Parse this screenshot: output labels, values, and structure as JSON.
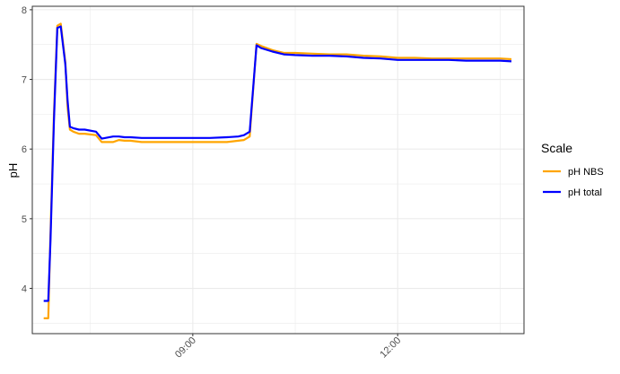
{
  "chart_data": {
    "type": "line",
    "title": "",
    "xlabel": "",
    "ylabel": "pH",
    "x_tick_labels": [
      "09:00",
      "12:00"
    ],
    "y_ticks": [
      4,
      5,
      6,
      7,
      8
    ],
    "ylim": [
      3.35,
      8.05
    ],
    "xlim": [
      "06:39",
      "13:51"
    ],
    "grid": true,
    "legend": {
      "title": "Scale",
      "position": "right"
    },
    "x": [
      "06:49",
      "06:53",
      "06:55",
      "06:58",
      "07:01",
      "07:04",
      "07:08",
      "07:10",
      "07:12",
      "07:15",
      "07:20",
      "07:25",
      "07:35",
      "07:40",
      "07:50",
      "07:55",
      "08:00",
      "08:05",
      "08:15",
      "08:30",
      "08:45",
      "09:00",
      "09:15",
      "09:30",
      "09:40",
      "09:45",
      "09:50",
      "09:56",
      "10:00",
      "10:10",
      "10:20",
      "10:30",
      "10:45",
      "11:00",
      "11:15",
      "11:30",
      "11:45",
      "12:00",
      "12:15",
      "12:30",
      "12:45",
      "13:00",
      "13:15",
      "13:30",
      "13:40"
    ],
    "series": [
      {
        "name": "pH NBS",
        "color": "#FFA500",
        "values": [
          3.57,
          3.57,
          4.8,
          6.5,
          7.77,
          7.8,
          7.25,
          6.6,
          6.28,
          6.25,
          6.22,
          6.22,
          6.2,
          6.1,
          6.1,
          6.13,
          6.12,
          6.12,
          6.1,
          6.1,
          6.1,
          6.1,
          6.1,
          6.1,
          6.12,
          6.13,
          6.18,
          7.51,
          7.48,
          7.42,
          7.38,
          7.38,
          7.37,
          7.36,
          7.36,
          7.34,
          7.33,
          7.31,
          7.31,
          7.3,
          7.3,
          7.3,
          7.3,
          7.3,
          7.29
        ]
      },
      {
        "name": "pH total",
        "color": "#0000FF",
        "values": [
          3.82,
          3.82,
          4.7,
          6.4,
          7.74,
          7.76,
          7.22,
          6.7,
          6.32,
          6.3,
          6.28,
          6.28,
          6.25,
          6.15,
          6.18,
          6.18,
          6.17,
          6.17,
          6.16,
          6.16,
          6.16,
          6.16,
          6.16,
          6.17,
          6.18,
          6.2,
          6.25,
          7.49,
          7.45,
          7.4,
          7.36,
          7.35,
          7.34,
          7.34,
          7.33,
          7.31,
          7.3,
          7.28,
          7.28,
          7.28,
          7.28,
          7.27,
          7.27,
          7.27,
          7.26
        ]
      }
    ]
  }
}
